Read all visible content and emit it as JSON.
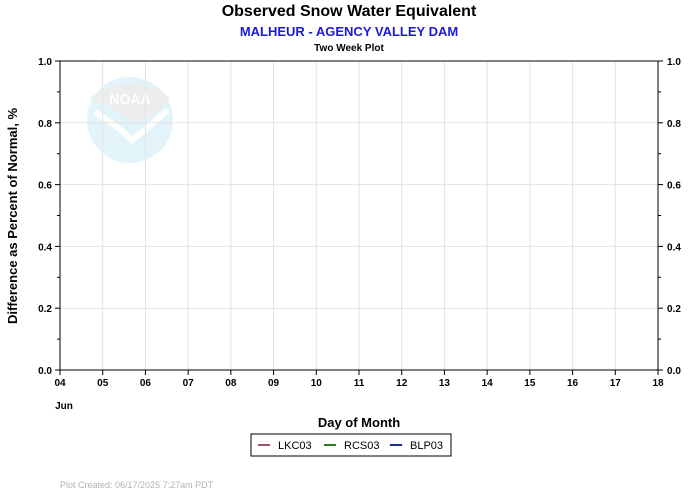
{
  "chart_data": {
    "type": "line",
    "title": "Observed Snow Water Equivalent",
    "subtitle": "MALHEUR - AGENCY VALLEY DAM",
    "subtitle2": "Two Week Plot",
    "xlabel": "Day of Month",
    "ylabel": "Difference as Percent of Normal, %",
    "x_ticks": [
      "04",
      "05",
      "06",
      "07",
      "08",
      "09",
      "10",
      "11",
      "12",
      "13",
      "14",
      "15",
      "16",
      "17",
      "18"
    ],
    "x_month_label": "Jun",
    "xlim": [
      4,
      18
    ],
    "ylim": [
      0.0,
      1.0
    ],
    "y_ticks": [
      "0.0",
      "0.2",
      "0.4",
      "0.6",
      "0.8",
      "1.0"
    ],
    "grid": true,
    "legend_position": "bottom-center",
    "series": [
      {
        "name": "LKC03",
        "color": "#a0506a",
        "values": []
      },
      {
        "name": "RCS03",
        "color": "#2a7a1e",
        "values": []
      },
      {
        "name": "BLP03",
        "color": "#1c2a9c",
        "values": []
      }
    ],
    "subtitle_color": "#1a1adc",
    "watermark_logo": "NOAA"
  },
  "footer": {
    "plot_created": "Plot Created:  06/17/2025 7:27am PDT"
  }
}
